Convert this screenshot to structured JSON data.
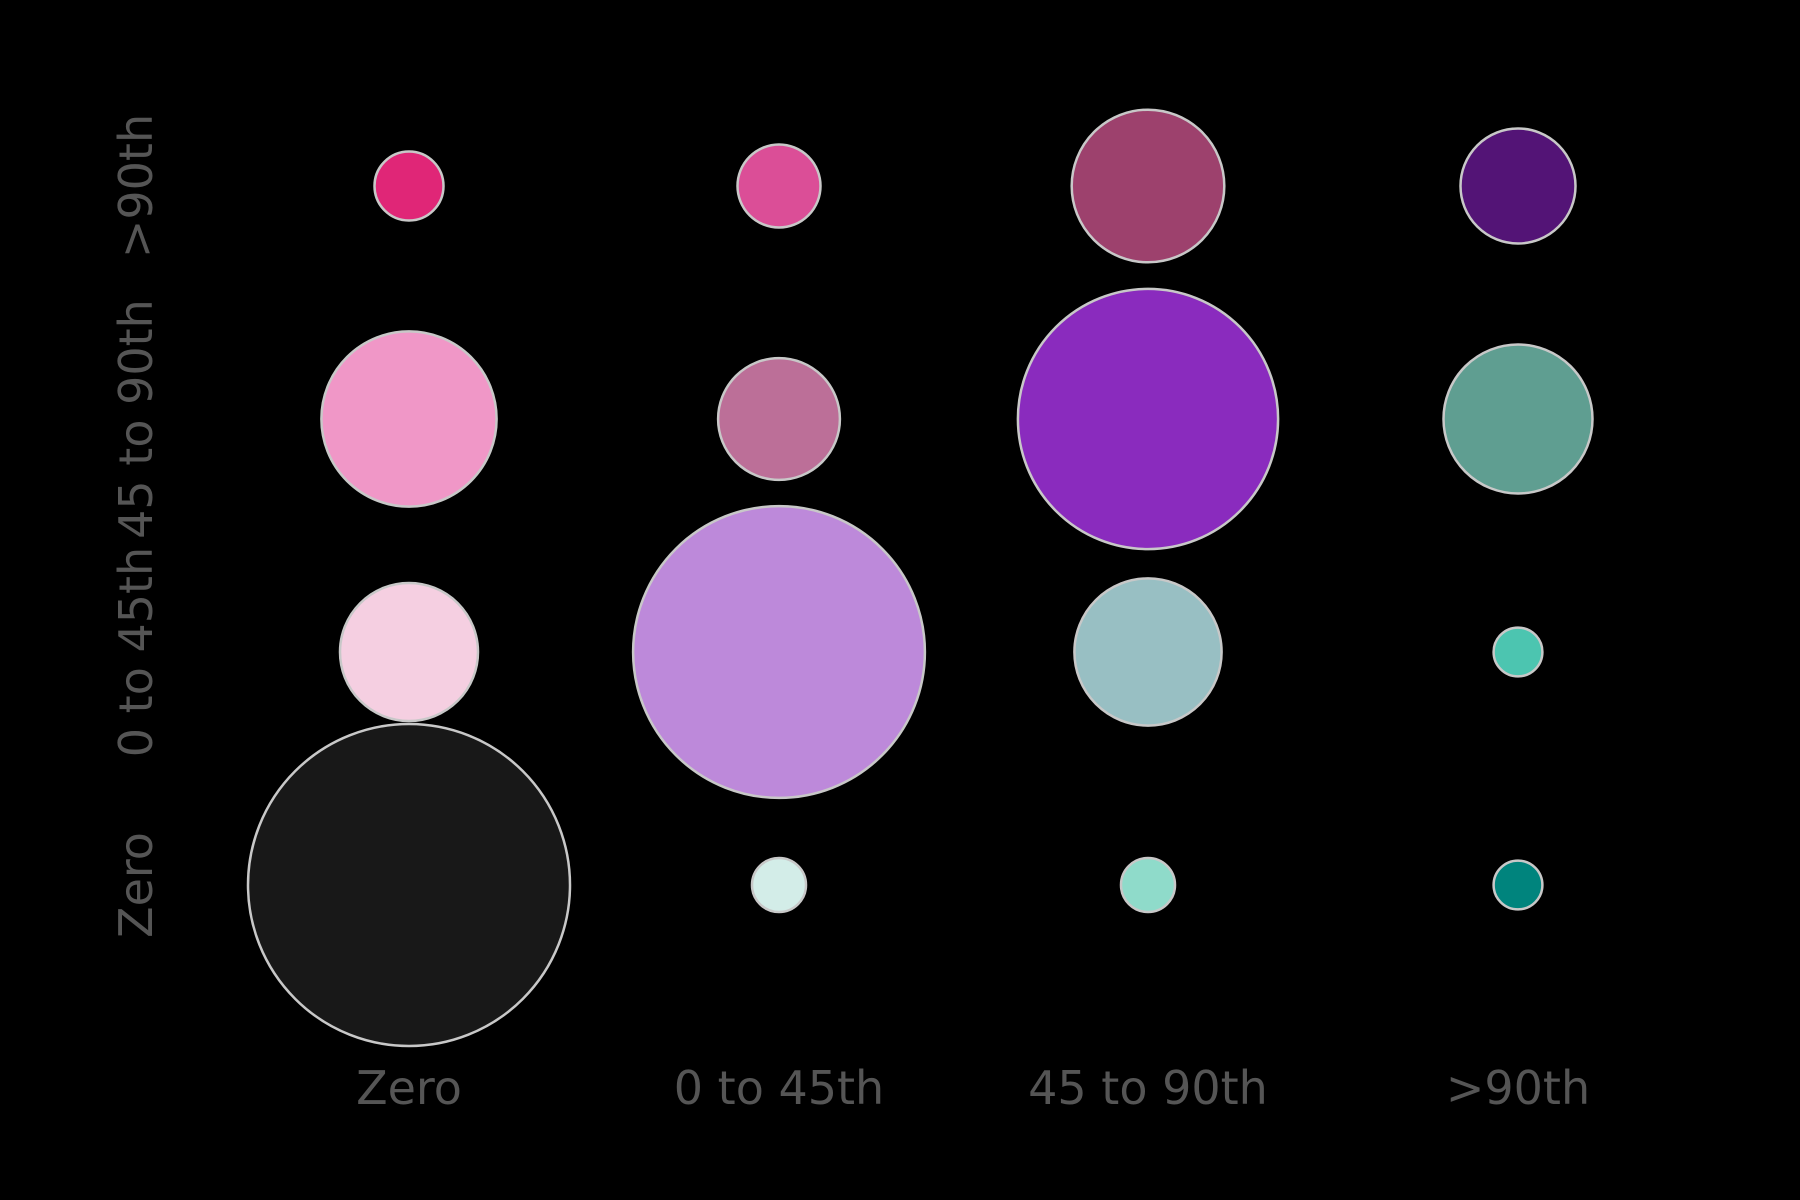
{
  "chart_data": {
    "type": "scatter",
    "variant": "bubble-matrix",
    "title": "",
    "xlabel": "",
    "ylabel": "",
    "x_categories": [
      "Zero",
      "0 to 45th",
      "45 to 90th",
      ">90th"
    ],
    "y_categories": [
      "Zero",
      "0 to 45th",
      "45 to 90th",
      ">90th"
    ],
    "grid": false,
    "legend": "none",
    "background": "#000000",
    "tick_color": "#555555",
    "bubble_stroke": "#c8c8c8",
    "cells": [
      {
        "x": "Zero",
        "y": "Zero",
        "size": 19.6,
        "color": "#181818"
      },
      {
        "x": "Zero",
        "y": "0 to 45th",
        "size": 3.6,
        "color": "#f5cfe1"
      },
      {
        "x": "Zero",
        "y": "45 to 90th",
        "size": 5.8,
        "color": "#f097c7"
      },
      {
        "x": "Zero",
        "y": ">90th",
        "size": 0.9,
        "color": "#e02677"
      },
      {
        "x": "0 to 45th",
        "y": "Zero",
        "size": 0.55,
        "color": "#d3ede8"
      },
      {
        "x": "0 to 45th",
        "y": "0 to 45th",
        "size": 16.1,
        "color": "#bd89da"
      },
      {
        "x": "0 to 45th",
        "y": "45 to 90th",
        "size": 2.8,
        "color": "#bc6f98"
      },
      {
        "x": "0 to 45th",
        "y": ">90th",
        "size": 1.3,
        "color": "#db4e97"
      },
      {
        "x": "45 to 90th",
        "y": "Zero",
        "size": 0.55,
        "color": "#8fdbca"
      },
      {
        "x": "45 to 90th",
        "y": "0 to 45th",
        "size": 4.1,
        "color": "#98bfc3"
      },
      {
        "x": "45 to 90th",
        "y": "45 to 90th",
        "size": 12.8,
        "color": "#8a2bbe"
      },
      {
        "x": "45 to 90th",
        "y": ">90th",
        "size": 4.4,
        "color": "#9d416d"
      },
      {
        "x": ">90th",
        "y": "Zero",
        "size": 0.45,
        "color": "#00847d"
      },
      {
        "x": ">90th",
        "y": "0 to 45th",
        "size": 0.45,
        "color": "#4cc5b0"
      },
      {
        "x": ">90th",
        "y": "45 to 90th",
        "size": 4.2,
        "color": "#5f9e91"
      },
      {
        "x": ">90th",
        "y": ">90th",
        "size": 2.5,
        "color": "#531476"
      }
    ]
  }
}
